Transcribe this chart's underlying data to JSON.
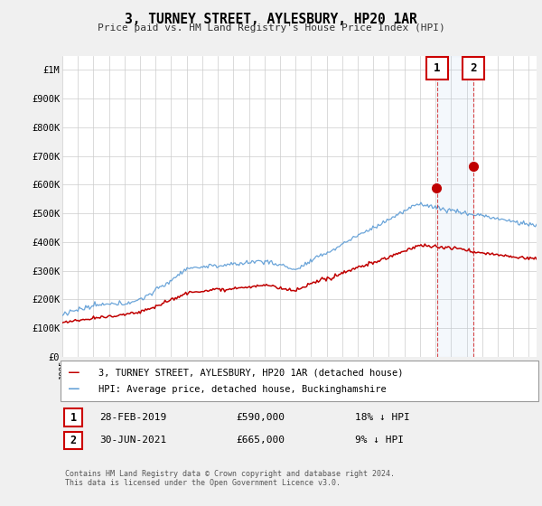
{
  "title": "3, TURNEY STREET, AYLESBURY, HP20 1AR",
  "subtitle": "Price paid vs. HM Land Registry's House Price Index (HPI)",
  "ylabel_ticks": [
    "£0",
    "£100K",
    "£200K",
    "£300K",
    "£400K",
    "£500K",
    "£600K",
    "£700K",
    "£800K",
    "£900K",
    "£1M"
  ],
  "ytick_values": [
    0,
    100000,
    200000,
    300000,
    400000,
    500000,
    600000,
    700000,
    800000,
    900000,
    1000000
  ],
  "ylim": [
    0,
    1050000
  ],
  "hpi_color": "#5b9bd5",
  "price_color": "#c00000",
  "sale1_year": 2019.083,
  "sale2_year": 2021.417,
  "marker1_price": 590000,
  "marker2_price": 665000,
  "sale1_label": "28-FEB-2019",
  "sale1_price_str": "£590,000",
  "sale1_pct": "18% ↓ HPI",
  "sale2_label": "30-JUN-2021",
  "sale2_price_str": "£665,000",
  "sale2_pct": "9% ↓ HPI",
  "legend_line1": "3, TURNEY STREET, AYLESBURY, HP20 1AR (detached house)",
  "legend_line2": "HPI: Average price, detached house, Buckinghamshire",
  "footnote": "Contains HM Land Registry data © Crown copyright and database right 2024.\nThis data is licensed under the Open Government Licence v3.0.",
  "background_color": "#f0f0f0",
  "plot_bg": "#ffffff",
  "grid_color": "#cccccc",
  "xmin": 1995,
  "xmax": 2025.5
}
